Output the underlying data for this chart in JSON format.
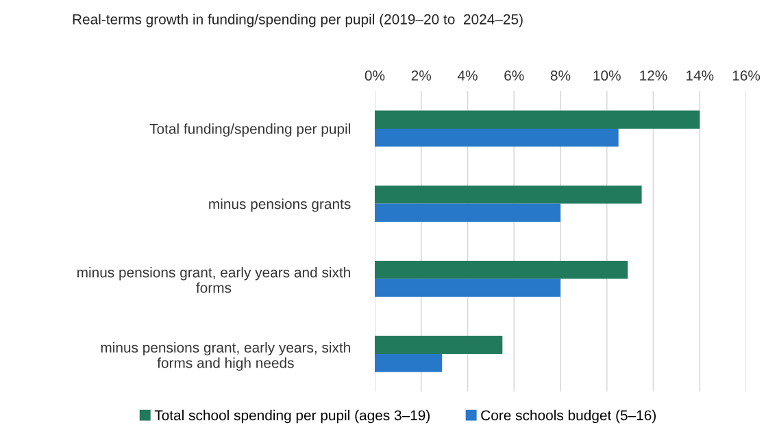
{
  "chart_data": {
    "type": "bar",
    "orientation": "horizontal",
    "xlabel": "Real-terms growth in funding/spending per pupil (2019–20 to  2024–25)",
    "categories": [
      "Total funding/spending per pupil",
      "minus pensions grants",
      "minus pensions grant, early years and sixth\nforms",
      "minus pensions grant, early years, sixth\nforms and high needs"
    ],
    "series": [
      {
        "name": "Total school spending per pupil (ages 3–19)",
        "color": "#217a5b",
        "values": [
          14.0,
          11.5,
          10.9,
          5.5
        ]
      },
      {
        "name": "Core schools budget (5–16)",
        "color": "#2778c9",
        "values": [
          10.5,
          8.0,
          8.0,
          2.9
        ]
      }
    ],
    "xlim": [
      0,
      16
    ],
    "xticks": [
      {
        "value": 0,
        "label": "0%"
      },
      {
        "value": 2,
        "label": "2%"
      },
      {
        "value": 4,
        "label": "4%"
      },
      {
        "value": 6,
        "label": "6%"
      },
      {
        "value": 8,
        "label": "8%"
      },
      {
        "value": 10,
        "label": "10%"
      },
      {
        "value": 12,
        "label": "12%"
      },
      {
        "value": 14,
        "label": "14%"
      },
      {
        "value": 16,
        "label": "16%"
      }
    ],
    "grid": "x",
    "legend": "bottom"
  }
}
